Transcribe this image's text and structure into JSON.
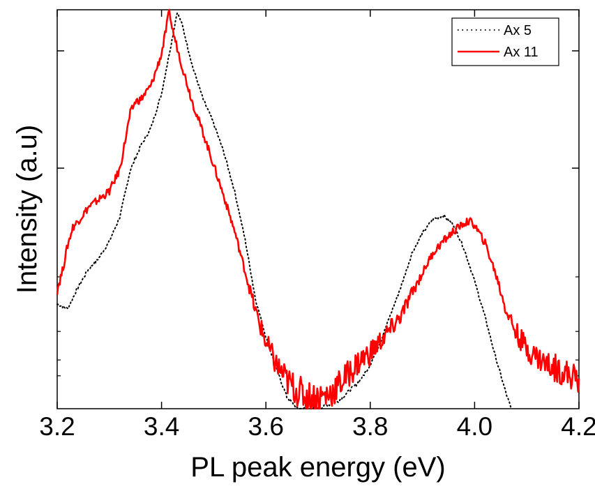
{
  "chart_data": {
    "type": "line",
    "title": "",
    "xlabel": "PL peak energy (eV)",
    "ylabel": "Intensity (a.u)",
    "xlim": [
      3.2,
      4.2
    ],
    "ylim": [
      0.0,
      1.0
    ],
    "yscale": "log",
    "ytick_labels": false,
    "x_ticks": [
      3.2,
      3.4,
      3.6,
      3.8,
      4.0,
      4.2
    ],
    "x_tick_labels": [
      "3.2",
      "3.4",
      "3.6",
      "3.8",
      "4.0",
      "4.2"
    ],
    "y_major_ticks": [
      0.897,
      0.603
    ],
    "y_minor_ticks": [
      0.3305,
      0.1937,
      0.1222,
      0.0825
    ],
    "legend_position": "top-right",
    "series": [
      {
        "name": "Ax 5",
        "color": "#000000",
        "style": "dotted",
        "x": [
          3.2,
          3.22,
          3.24,
          3.26,
          3.28,
          3.3,
          3.32,
          3.34,
          3.36,
          3.38,
          3.4,
          3.42,
          3.43,
          3.44,
          3.46,
          3.48,
          3.5,
          3.52,
          3.54,
          3.56,
          3.58,
          3.6,
          3.62,
          3.64,
          3.66,
          3.7,
          3.74,
          3.78,
          3.8,
          3.82,
          3.84,
          3.86,
          3.88,
          3.9,
          3.92,
          3.94,
          3.96,
          3.98,
          4.0,
          4.02,
          4.04,
          4.06,
          4.07
        ],
        "values": [
          0.262,
          0.25,
          0.305,
          0.35,
          0.378,
          0.42,
          0.48,
          0.598,
          0.658,
          0.705,
          0.79,
          0.925,
          0.995,
          0.96,
          0.855,
          0.775,
          0.715,
          0.64,
          0.545,
          0.425,
          0.275,
          0.18,
          0.1,
          0.03,
          0.0,
          0.0,
          0.02,
          0.07,
          0.11,
          0.17,
          0.24,
          0.31,
          0.39,
          0.44,
          0.475,
          0.485,
          0.46,
          0.4,
          0.32,
          0.23,
          0.13,
          0.04,
          0.0
        ]
      },
      {
        "name": "Ax 11",
        "color": "#ff0000",
        "style": "solid",
        "x": [
          3.2,
          3.21,
          3.22,
          3.23,
          3.24,
          3.26,
          3.28,
          3.3,
          3.32,
          3.34,
          3.35,
          3.36,
          3.38,
          3.4,
          3.41,
          3.415,
          3.42,
          3.44,
          3.46,
          3.48,
          3.5,
          3.52,
          3.54,
          3.56,
          3.58,
          3.6,
          3.62,
          3.64,
          3.66,
          3.68,
          3.7,
          3.72,
          3.74,
          3.76,
          3.78,
          3.8,
          3.82,
          3.84,
          3.86,
          3.88,
          3.9,
          3.92,
          3.94,
          3.96,
          3.98,
          3.99,
          4.0,
          4.02,
          4.04,
          4.06,
          4.08,
          4.1,
          4.12,
          4.14,
          4.16,
          4.18,
          4.2
        ],
        "values": [
          0.3,
          0.345,
          0.41,
          0.455,
          0.47,
          0.505,
          0.525,
          0.545,
          0.6,
          0.74,
          0.77,
          0.775,
          0.81,
          0.89,
          0.96,
          1.0,
          0.955,
          0.855,
          0.765,
          0.69,
          0.61,
          0.53,
          0.445,
          0.345,
          0.245,
          0.165,
          0.11,
          0.07,
          0.045,
          0.03,
          0.028,
          0.035,
          0.06,
          0.09,
          0.12,
          0.14,
          0.17,
          0.2,
          0.235,
          0.29,
          0.34,
          0.39,
          0.42,
          0.445,
          0.465,
          0.47,
          0.46,
          0.415,
          0.34,
          0.25,
          0.19,
          0.15,
          0.13,
          0.11,
          0.1,
          0.085,
          0.075
        ]
      }
    ]
  }
}
